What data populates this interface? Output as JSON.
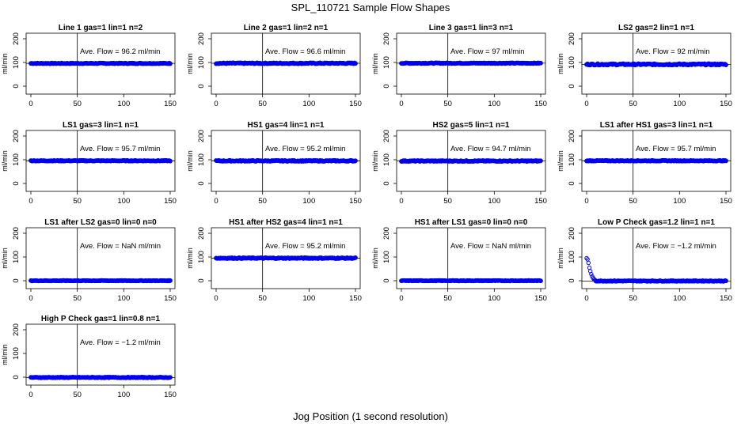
{
  "figure": {
    "title": "SPL_110721  Sample Flow Shapes",
    "xlabel": "Jog Position (1 second resolution)",
    "point_color": "#0000ee"
  },
  "chart_data": [
    {
      "type": "scatter",
      "title": "Line 1 gas=1 lin=1 n=2",
      "annotation": "Ave. Flow =  96.2  ml/min",
      "ylabel": "ml/min",
      "xlim": [
        0,
        150
      ],
      "ylim": [
        -20,
        210
      ],
      "xticks": [
        "0",
        "50",
        "100",
        "150"
      ],
      "yticks": [
        "0",
        "100",
        "200"
      ],
      "vline_x": 50,
      "hline_y": 96.2,
      "x_range": [
        0,
        150
      ],
      "y_level": 96.2,
      "spread": 3
    },
    {
      "type": "scatter",
      "title": "Line 2 gas=1 lin=2 n=1",
      "annotation": "Ave. Flow =  96.6  ml/min",
      "ylabel": "ml/min",
      "xlim": [
        0,
        150
      ],
      "ylim": [
        -20,
        210
      ],
      "xticks": [
        "0",
        "50",
        "100",
        "150"
      ],
      "yticks": [
        "0",
        "100",
        "200"
      ],
      "vline_x": 50,
      "hline_y": 96.6,
      "x_range": [
        0,
        150
      ],
      "y_level": 96.6,
      "spread": 4
    },
    {
      "type": "scatter",
      "title": "Line 3 gas=1 lin=3 n=1",
      "annotation": "Ave. Flow =  97  ml/min",
      "ylabel": "ml/min",
      "xlim": [
        0,
        150
      ],
      "ylim": [
        -20,
        210
      ],
      "xticks": [
        "0",
        "50",
        "100",
        "150"
      ],
      "yticks": [
        "0",
        "100",
        "200"
      ],
      "vline_x": 50,
      "hline_y": 97,
      "x_range": [
        0,
        150
      ],
      "y_level": 97,
      "spread": 3
    },
    {
      "type": "scatter",
      "title": "LS2 gas=2 lin=1 n=1",
      "annotation": "Ave. Flow =  92  ml/min",
      "ylabel": "ml/min",
      "xlim": [
        0,
        150
      ],
      "ylim": [
        -20,
        210
      ],
      "xticks": [
        "0",
        "50",
        "100",
        "150"
      ],
      "yticks": [
        "0",
        "100",
        "200"
      ],
      "vline_x": 50,
      "hline_y": 92,
      "x_range": [
        0,
        150
      ],
      "y_level": 92,
      "spread": 6
    },
    {
      "type": "scatter",
      "title": "LS1 gas=3 lin=1 n=1",
      "annotation": "Ave. Flow =  95.7  ml/min",
      "ylabel": "ml/min",
      "xlim": [
        0,
        150
      ],
      "ylim": [
        -20,
        210
      ],
      "xticks": [
        "0",
        "50",
        "100",
        "150"
      ],
      "yticks": [
        "0",
        "100",
        "200"
      ],
      "vline_x": 50,
      "hline_y": 95.7,
      "x_range": [
        0,
        150
      ],
      "y_level": 95.7,
      "spread": 3
    },
    {
      "type": "scatter",
      "title": "HS1 gas=4 lin=1 n=1",
      "annotation": "Ave. Flow =  95.2  ml/min",
      "ylabel": "ml/min",
      "xlim": [
        0,
        150
      ],
      "ylim": [
        -20,
        210
      ],
      "xticks": [
        "0",
        "50",
        "100",
        "150"
      ],
      "yticks": [
        "0",
        "100",
        "200"
      ],
      "vline_x": 50,
      "hline_y": 95.2,
      "x_range": [
        0,
        150
      ],
      "y_level": 95.2,
      "spread": 4
    },
    {
      "type": "scatter",
      "title": "HS2 gas=5 lin=1 n=1",
      "annotation": "Ave. Flow =  94.7  ml/min",
      "ylabel": "ml/min",
      "xlim": [
        0,
        150
      ],
      "ylim": [
        -20,
        210
      ],
      "xticks": [
        "0",
        "50",
        "100",
        "150"
      ],
      "yticks": [
        "0",
        "100",
        "200"
      ],
      "vline_x": 50,
      "hline_y": 94.7,
      "x_range": [
        0,
        150
      ],
      "y_level": 94.7,
      "spread": 4
    },
    {
      "type": "scatter",
      "title": "LS1 after HS1 gas=3 lin=1 n=1",
      "annotation": "Ave. Flow =  95.7  ml/min",
      "ylabel": "ml/min",
      "xlim": [
        0,
        150
      ],
      "ylim": [
        -20,
        210
      ],
      "xticks": [
        "0",
        "50",
        "100",
        "150"
      ],
      "yticks": [
        "0",
        "100",
        "200"
      ],
      "vline_x": 50,
      "hline_y": 95.7,
      "x_range": [
        0,
        150
      ],
      "y_level": 95.7,
      "spread": 3
    },
    {
      "type": "scatter",
      "title": "LS1 after LS2 gas=0 lin=0 n=0",
      "annotation": "Ave. Flow =  NaN  ml/min",
      "ylabel": "ml/min",
      "xlim": [
        0,
        150
      ],
      "ylim": [
        -20,
        210
      ],
      "xticks": [
        "0",
        "50",
        "100",
        "150"
      ],
      "yticks": [
        "0",
        "100",
        "200"
      ],
      "vline_x": 50,
      "hline_y": null,
      "x_range": [
        0,
        150
      ],
      "y_level": 0,
      "spread": 2
    },
    {
      "type": "scatter",
      "title": "HS1 after HS2 gas=4 lin=1 n=1",
      "annotation": "Ave. Flow =  95.2  ml/min",
      "ylabel": "ml/min",
      "xlim": [
        0,
        150
      ],
      "ylim": [
        -20,
        210
      ],
      "xticks": [
        "0",
        "50",
        "100",
        "150"
      ],
      "yticks": [
        "0",
        "100",
        "200"
      ],
      "vline_x": 50,
      "hline_y": 95.2,
      "x_range": [
        0,
        150
      ],
      "y_level": 95.2,
      "spread": 4
    },
    {
      "type": "scatter",
      "title": "HS1 after LS1 gas=0 lin=0 n=0",
      "annotation": "Ave. Flow =  NaN  ml/min",
      "ylabel": "ml/min",
      "xlim": [
        0,
        150
      ],
      "ylim": [
        -20,
        210
      ],
      "xticks": [
        "0",
        "50",
        "100",
        "150"
      ],
      "yticks": [
        "0",
        "100",
        "200"
      ],
      "vline_x": 50,
      "hline_y": null,
      "x_range": [
        0,
        150
      ],
      "y_level": 0,
      "spread": 2
    },
    {
      "type": "scatter",
      "title": "Low P Check gas=1.2 lin=1 n=1",
      "annotation": "Ave. Flow =  −1.2  ml/min",
      "ylabel": "ml/min",
      "xlim": [
        0,
        150
      ],
      "ylim": [
        -20,
        210
      ],
      "xticks": [
        "0",
        "50",
        "100",
        "150"
      ],
      "yticks": [
        "0",
        "100",
        "200"
      ],
      "vline_x": 50,
      "hline_y": -1.2,
      "x_range": [
        10,
        150
      ],
      "y_level": -1.2,
      "spread": 3,
      "extra_points": [
        [
          0,
          95
        ],
        [
          1,
          90
        ],
        [
          2,
          75
        ],
        [
          3,
          55
        ],
        [
          4,
          40
        ],
        [
          5,
          28
        ],
        [
          6,
          18
        ],
        [
          7,
          11
        ],
        [
          8,
          6
        ],
        [
          9,
          3
        ]
      ]
    },
    {
      "type": "scatter",
      "title": "High P Check gas=1 lin=0.8 n=1",
      "annotation": "Ave. Flow =  −1.2  ml/min",
      "ylabel": "ml/min",
      "xlim": [
        0,
        150
      ],
      "ylim": [
        -20,
        210
      ],
      "xticks": [
        "0",
        "50",
        "100",
        "150"
      ],
      "yticks": [
        "0",
        "100",
        "200"
      ],
      "vline_x": 50,
      "hline_y": -1.2,
      "x_range": [
        0,
        150
      ],
      "y_level": -1.2,
      "spread": 3
    }
  ]
}
